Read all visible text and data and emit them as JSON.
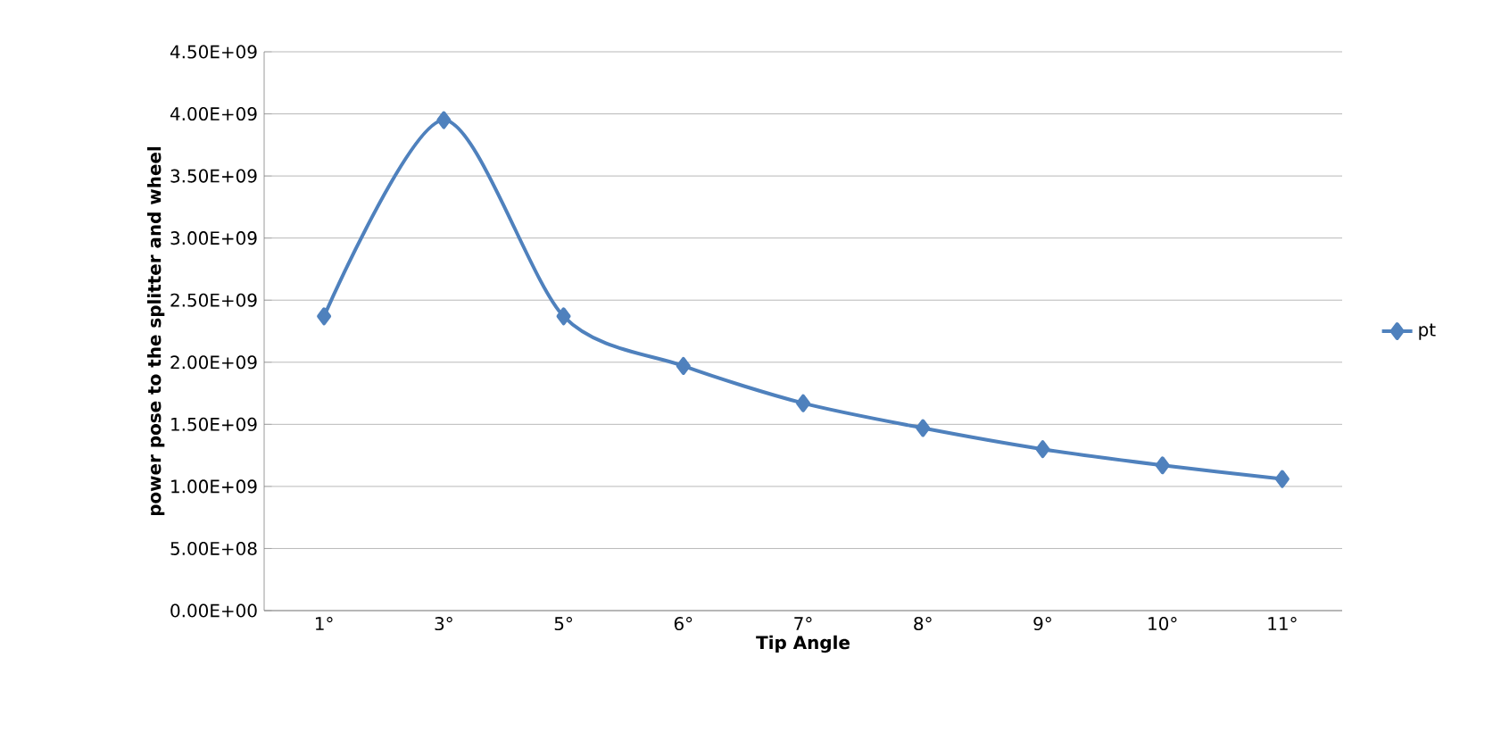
{
  "chart_data": {
    "type": "line",
    "xlabel": "Tip Angle",
    "ylabel": "power pose to the splitter and wheel",
    "categories": [
      "1°",
      "3°",
      "5°",
      "6°",
      "7°",
      "8°",
      "9°",
      "10°",
      "11°"
    ],
    "series": [
      {
        "name": "pt",
        "color": "#4f81bd",
        "values": [
          2370000000.0,
          3950000000.0,
          2370000000.0,
          1970000000.0,
          1670000000.0,
          1470000000.0,
          1300000000.0,
          1170000000.0,
          1060000000.0
        ]
      }
    ],
    "ylim": [
      0,
      4500000000.0
    ],
    "yticks": [
      {
        "value": 0,
        "label": "0.00E+00"
      },
      {
        "value": 500000000.0,
        "label": "5.00E+08"
      },
      {
        "value": 1000000000.0,
        "label": "1.00E+09"
      },
      {
        "value": 1500000000.0,
        "label": "1.50E+09"
      },
      {
        "value": 2000000000.0,
        "label": "2.00E+09"
      },
      {
        "value": 2500000000.0,
        "label": "2.50E+09"
      },
      {
        "value": 3000000000.0,
        "label": "3.00E+09"
      },
      {
        "value": 3500000000.0,
        "label": "3.50E+09"
      },
      {
        "value": 4000000000.0,
        "label": "4.00E+09"
      },
      {
        "value": 4500000000.0,
        "label": "4.50E+09"
      }
    ],
    "grid": "y",
    "legend": "right",
    "marker": "diamond",
    "line_style": "solid"
  }
}
